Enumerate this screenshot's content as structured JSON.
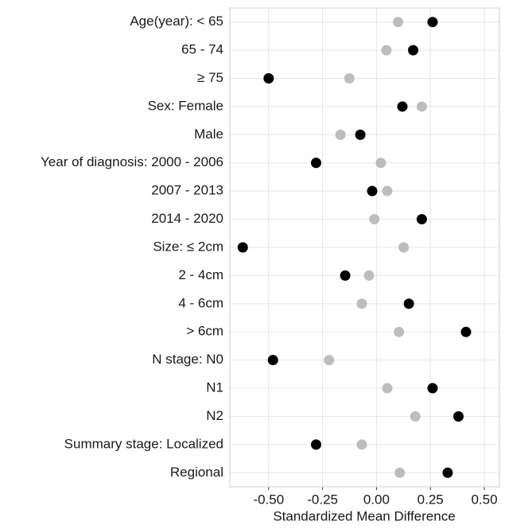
{
  "chart_data": {
    "type": "dot",
    "x_label": "Standardized Mean Difference",
    "categories": [
      "Age(year): < 65",
      "65 - 74",
      "≥ 75",
      "Sex: Female",
      "Male",
      "Year of diagnosis: 2000 - 2006",
      "2007 - 2013",
      "2014 - 2020",
      "Size: ≤ 2cm",
      "2 - 4cm",
      "4 - 6cm",
      "> 6cm",
      "N stage: N0",
      "N1",
      "N2",
      "Summary stage: Localized",
      "Regional"
    ],
    "series": [
      {
        "color": "#bdbdbd",
        "values": [
          0.1,
          0.046,
          -0.126,
          0.21,
          -0.167,
          0.02,
          0.05,
          -0.01,
          0.126,
          -0.035,
          -0.068,
          0.104,
          -0.22,
          0.05,
          0.18,
          -0.068,
          0.108
        ]
      },
      {
        "color": "#000000",
        "values": [
          0.26,
          0.17,
          -0.5,
          0.12,
          -0.075,
          -0.28,
          -0.02,
          0.21,
          -0.62,
          -0.145,
          0.15,
          0.415,
          -0.48,
          0.26,
          0.38,
          -0.28,
          0.33
        ]
      }
    ],
    "xlim": [
      -0.68,
      0.57
    ],
    "xticks": [
      {
        "value": -0.5,
        "label": "-0.50"
      },
      -0.25,
      {
        "value": 0,
        "label": "0.00"
      },
      0.25,
      {
        "value": 0.5,
        "label": "0.50"
      }
    ],
    "grid": true
  }
}
